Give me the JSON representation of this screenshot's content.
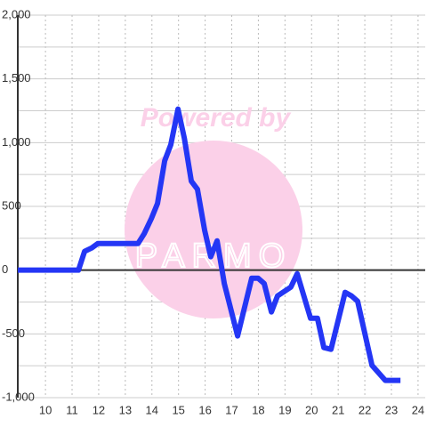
{
  "chart_data": {
    "type": "line",
    "watermark": [
      "Powered by",
      "PARMO"
    ],
    "x": [
      8.96,
      11.24,
      11.47,
      11.74,
      11.97,
      13.48,
      13.71,
      13.98,
      14.21,
      14.48,
      14.71,
      14.98,
      15.22,
      15.48,
      15.71,
      15.98,
      16.21,
      16.45,
      16.72,
      17.22,
      17.75,
      17.99,
      18.22,
      18.49,
      18.72,
      19.22,
      19.46,
      19.96,
      20.22,
      20.46,
      20.73,
      21.26,
      21.5,
      21.73,
      22.27,
      22.77,
      23.34
    ],
    "series": [
      {
        "color": "#2436f5",
        "values": [
          0,
          0,
          147,
          174,
          209,
          209,
          286,
          405,
          523,
          858,
          984,
          1263,
          1033,
          698,
          635,
          314,
          105,
          230,
          -105,
          -516,
          -63,
          -63,
          -105,
          -328,
          -202,
          -133,
          -28,
          -377,
          -377,
          -607,
          -621,
          -174,
          -202,
          -244,
          -747,
          -865,
          -865
        ]
      }
    ],
    "xlim": [
      8.96,
      24.27
    ],
    "xticks": [
      10,
      11,
      12,
      13,
      14,
      15,
      16,
      17,
      18,
      19,
      20,
      21,
      22,
      23,
      24
    ],
    "ylim": [
      -1000,
      2000
    ],
    "yticks": [
      {
        "value": -1000,
        "label": "-1,000"
      },
      -500,
      0,
      500,
      {
        "value": 1000,
        "label": "1,000"
      },
      {
        "value": 1500,
        "label": "1,500"
      },
      {
        "value": 2000,
        "label": "2,000"
      }
    ],
    "yminorticks": [
      -750,
      -250,
      250,
      750,
      1250,
      1750
    ],
    "grid": true
  }
}
